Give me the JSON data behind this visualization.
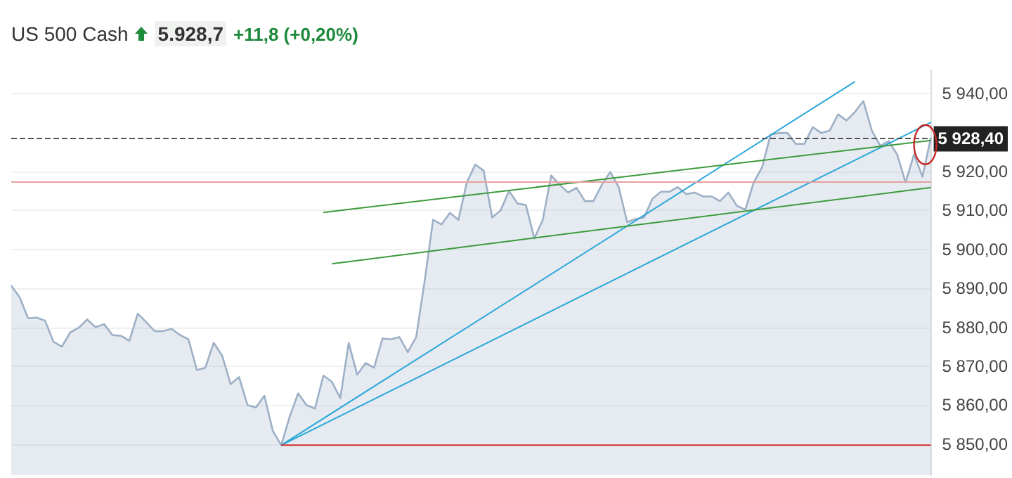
{
  "chart_data": {
    "type": "area",
    "title": "US 500 Cash",
    "annotations": [
      "5.928,7",
      "+11,8 (+0,20%)"
    ],
    "categories": [
      null,
      null,
      null,
      null,
      null,
      null,
      null,
      null,
      null,
      null,
      null,
      null,
      null,
      null,
      null,
      null,
      null,
      null,
      null,
      null,
      null,
      null,
      null,
      null,
      null,
      null,
      null,
      null,
      null,
      null,
      null,
      null,
      null,
      null,
      null,
      null,
      null,
      null,
      null,
      null,
      null,
      null,
      null,
      null,
      null,
      null,
      null,
      null,
      null,
      null,
      null,
      null,
      null,
      null,
      null,
      null,
      null,
      null,
      null,
      null,
      null,
      null,
      null,
      null,
      null,
      null,
      null,
      null,
      null,
      null,
      null,
      null,
      null,
      null,
      null,
      null,
      null,
      null,
      null,
      null,
      null,
      null,
      null,
      null,
      null,
      null,
      null,
      null,
      null,
      null,
      null,
      null,
      null,
      null,
      null,
      null,
      null,
      null,
      null,
      null,
      null,
      null,
      null,
      null,
      null,
      null,
      null,
      null,
      null,
      null
    ],
    "series": [
      {
        "color": "#9db0c6",
        "values": [
          5890.7,
          5887.7,
          5882.3,
          5882.5,
          5881.7,
          5876.3,
          5875,
          5878.7,
          5879.9,
          5882,
          5880,
          5880.8,
          5878,
          5877.8,
          5876.5,
          5883.5,
          5881.3,
          5879,
          5879,
          5879.6,
          5878,
          5876.9,
          5869,
          5869.6,
          5876,
          5872.7,
          5865.4,
          5867.2,
          5860,
          5859.4,
          5862.4,
          5853.4,
          5849.7,
          5857,
          5863,
          5860,
          5859.1,
          5867.6,
          5866,
          5861.8,
          5876,
          5867.8,
          5870.8,
          5869.6,
          5877.1,
          5876.9,
          5877.5,
          5873.6,
          5877.5,
          5891.9,
          5907.6,
          5906.4,
          5909.4,
          5907.6,
          5917.2,
          5921.8,
          5920.2,
          5908.2,
          5910,
          5915,
          5911.8,
          5911.4,
          5902.8,
          5907.6,
          5919,
          5916.6,
          5914.6,
          5915.8,
          5912.4,
          5912.4,
          5916.6,
          5919.9,
          5916,
          5907,
          5907.8,
          5908.2,
          5913,
          5914.8,
          5914.8,
          5916,
          5914.2,
          5914.6,
          5913.6,
          5913.6,
          5912.4,
          5914.6,
          5911.2,
          5910.2,
          5917.2,
          5921.1,
          5929.5,
          5929.9,
          5929.9,
          5927.1,
          5927.1,
          5931.4,
          5929.9,
          5930.5,
          5934.7,
          5933.1,
          5935.3,
          5938.1,
          5930.5,
          5926.6,
          5927.8,
          5924.4,
          5917.2,
          5924.4,
          5918.7,
          5928.7
        ]
      },
      {
        "type": "line",
        "color": "#2aa7d8",
        "values": [
          null,
          null,
          null,
          null,
          null,
          null,
          null,
          null,
          null,
          null,
          null,
          null,
          null,
          null,
          null,
          null,
          null,
          null,
          null,
          null,
          null,
          null,
          null,
          null,
          null,
          null,
          null,
          null,
          null,
          null,
          null,
          null,
          5849.7,
          null,
          null,
          null,
          null,
          null,
          null,
          null,
          null,
          null,
          null,
          null,
          null,
          null,
          null,
          null,
          null,
          null,
          null,
          null,
          null,
          null,
          null,
          null,
          null,
          null,
          null,
          null,
          null,
          null,
          null,
          null,
          null,
          null,
          null,
          null,
          null,
          null,
          null,
          null,
          null,
          null,
          null,
          null,
          null,
          null,
          null,
          null,
          null,
          null,
          null,
          null,
          null,
          null,
          null,
          null,
          null,
          null,
          null,
          null,
          null,
          null,
          null,
          null,
          null,
          null,
          null,
          null,
          5943.1,
          null,
          null,
          null,
          null,
          null,
          null,
          null,
          null,
          null
        ]
      },
      {
        "type": "line",
        "color": "#2aa7d8",
        "values": [
          null,
          null,
          null,
          null,
          null,
          null,
          null,
          null,
          null,
          null,
          null,
          null,
          null,
          null,
          null,
          null,
          null,
          null,
          null,
          null,
          null,
          null,
          null,
          null,
          null,
          null,
          null,
          null,
          null,
          null,
          null,
          null,
          5849.7,
          null,
          null,
          null,
          null,
          null,
          null,
          null,
          null,
          null,
          null,
          null,
          null,
          null,
          null,
          null,
          null,
          null,
          null,
          null,
          null,
          null,
          null,
          null,
          null,
          null,
          null,
          null,
          null,
          null,
          null,
          null,
          null,
          null,
          null,
          null,
          null,
          null,
          null,
          null,
          null,
          null,
          null,
          null,
          null,
          null,
          null,
          null,
          null,
          null,
          null,
          null,
          null,
          null,
          null,
          null,
          null,
          null,
          null,
          null,
          null,
          null,
          null,
          null,
          null,
          null,
          null,
          null,
          null,
          null,
          null,
          null,
          null,
          null,
          null,
          null,
          null,
          5932.6
        ]
      },
      {
        "type": "line",
        "color": "#3d9b3d",
        "values": [
          null,
          null,
          null,
          null,
          null,
          null,
          null,
          null,
          null,
          null,
          null,
          null,
          null,
          null,
          null,
          null,
          null,
          null,
          null,
          null,
          null,
          null,
          null,
          null,
          null,
          null,
          null,
          null,
          null,
          null,
          null,
          null,
          null,
          null,
          null,
          null,
          null,
          5909.5,
          null,
          null,
          null,
          null,
          null,
          null,
          null,
          null,
          null,
          null,
          null,
          null,
          null,
          null,
          null,
          null,
          null,
          null,
          null,
          null,
          null,
          null,
          null,
          null,
          null,
          null,
          null,
          null,
          null,
          null,
          null,
          null,
          null,
          null,
          null,
          null,
          null,
          null,
          null,
          null,
          null,
          null,
          null,
          null,
          null,
          null,
          null,
          null,
          null,
          null,
          null,
          null,
          null,
          null,
          null,
          null,
          null,
          null,
          null,
          null,
          null,
          null,
          null,
          null,
          null,
          null,
          null,
          null,
          null,
          null,
          null,
          5928
        ]
      },
      {
        "type": "line",
        "color": "#3d9b3d",
        "values": [
          null,
          null,
          null,
          null,
          null,
          null,
          null,
          null,
          null,
          null,
          null,
          null,
          null,
          null,
          null,
          null,
          null,
          null,
          null,
          null,
          null,
          null,
          null,
          null,
          null,
          null,
          null,
          null,
          null,
          null,
          null,
          null,
          null,
          null,
          null,
          null,
          null,
          null,
          5896.3,
          null,
          null,
          null,
          null,
          null,
          null,
          null,
          null,
          null,
          null,
          null,
          null,
          null,
          null,
          null,
          null,
          null,
          null,
          null,
          null,
          null,
          null,
          null,
          null,
          null,
          null,
          null,
          null,
          null,
          null,
          null,
          null,
          null,
          null,
          null,
          null,
          null,
          null,
          null,
          null,
          null,
          null,
          null,
          null,
          null,
          null,
          null,
          null,
          null,
          null,
          null,
          null,
          null,
          null,
          null,
          null,
          null,
          null,
          null,
          null,
          null,
          null,
          null,
          null,
          null,
          null,
          null,
          null,
          null,
          null,
          5915.9
        ]
      },
      {
        "type": "line",
        "color": "#d32f2f",
        "values": [
          null,
          null,
          null,
          null,
          null,
          null,
          null,
          null,
          null,
          null,
          null,
          null,
          null,
          null,
          null,
          null,
          null,
          null,
          null,
          null,
          null,
          null,
          null,
          null,
          null,
          null,
          null,
          null,
          null,
          null,
          null,
          null,
          5849.7,
          null,
          null,
          null,
          null,
          null,
          null,
          null,
          null,
          null,
          null,
          null,
          null,
          null,
          null,
          null,
          null,
          null,
          null,
          null,
          null,
          null,
          null,
          null,
          null,
          null,
          null,
          null,
          null,
          null,
          null,
          null,
          null,
          null,
          null,
          null,
          null,
          null,
          null,
          null,
          null,
          null,
          null,
          null,
          null,
          null,
          null,
          null,
          null,
          null,
          null,
          null,
          null,
          null,
          null,
          null,
          null,
          null,
          null,
          null,
          null,
          null,
          null,
          null,
          null,
          null,
          null,
          null,
          null,
          null,
          null,
          null,
          null,
          null,
          null,
          null,
          null,
          5849.7
        ]
      }
    ],
    "ylim": [
      5842,
      5946
    ],
    "yticks": [
      {
        "value": 5850,
        "label": "5 850,00"
      },
      {
        "value": 5860,
        "label": "5 860,00"
      },
      {
        "value": 5870,
        "label": "5 870,00"
      },
      {
        "value": 5880,
        "label": "5 880,00"
      },
      {
        "value": 5890,
        "label": "5 890,00"
      },
      {
        "value": 5900,
        "label": "5 900,00"
      },
      {
        "value": 5910,
        "label": "5 910,00"
      },
      {
        "value": 5920,
        "label": "5 920,00"
      },
      {
        "value": 5940,
        "label": "5 940,00"
      }
    ],
    "ref_lines": [
      {
        "axis": "y",
        "value": 5928.4,
        "label": "5 928,40",
        "color": "#555555",
        "line_style": "dashed"
      },
      {
        "axis": "y",
        "value": 5917.3,
        "color": "#e8a0a0"
      }
    ],
    "grid": "y",
    "tick_labels": "y"
  }
}
